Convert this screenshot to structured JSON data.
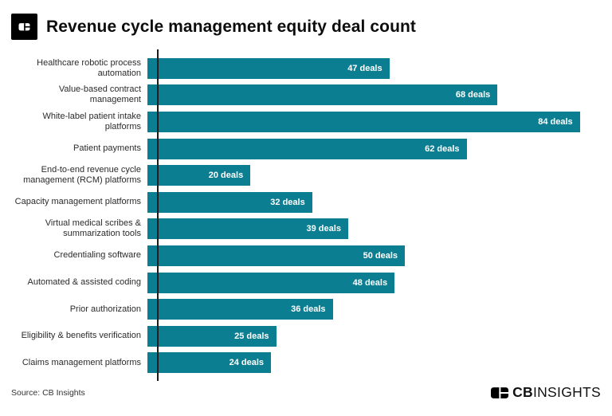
{
  "header": {
    "title": "Revenue cycle management equity deal count",
    "logo_icon": "cb-insights-logomark"
  },
  "chart_data": {
    "type": "bar",
    "orientation": "horizontal",
    "title": "Revenue cycle management equity deal count",
    "categories": [
      "Healthcare robotic process automation",
      "Value-based contract management",
      "White-label patient intake platforms",
      "Patient payments",
      "End-to-end revenue cycle management (RCM) platforms",
      "Capacity management platforms",
      "Virtual medical scribes & summarization tools",
      "Credentialing software",
      "Automated & assisted coding",
      "Prior authorization",
      "Eligibility & benefits verification",
      "Claims management platforms"
    ],
    "values": [
      47,
      68,
      84,
      62,
      20,
      32,
      39,
      50,
      48,
      36,
      25,
      24
    ],
    "value_labels": [
      "47 deals",
      "68 deals",
      "84 deals",
      "62 deals",
      "20 deals",
      "32 deals",
      "39 deals",
      "50 deals",
      "48 deals",
      "36 deals",
      "25 deals",
      "24 deals"
    ],
    "xlabel": "",
    "ylabel": "",
    "xlim": [
      0,
      84
    ],
    "grid": false,
    "legend": false,
    "bar_color": "#0c7e92",
    "value_text_color": "#ffffff",
    "axis_color": "#1c1c1c"
  },
  "footer": {
    "source": "Source: CB Insights",
    "brand_cb": "CB",
    "brand_insights": "INSIGHTS"
  }
}
